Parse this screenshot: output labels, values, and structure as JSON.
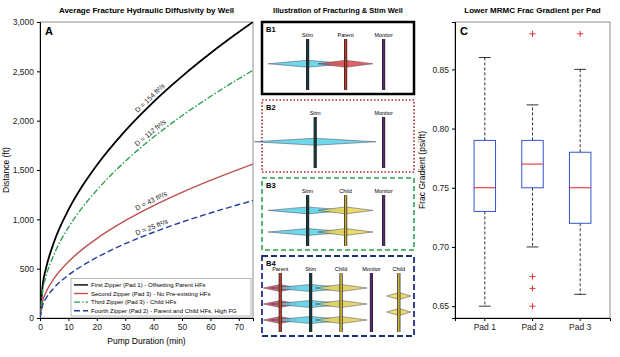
{
  "chart_data": [
    {
      "type": "line",
      "title": "Average Fracture Hydraulic Diffusivity by Well",
      "panel_label": "A",
      "x_label": "Pump Duration (min)",
      "y_label": "Distance (ft)",
      "x": [
        0,
        1,
        2,
        5,
        10,
        15,
        20,
        30,
        40,
        50,
        60,
        70,
        75
      ],
      "xlim": [
        0,
        75
      ],
      "xticks": [
        0,
        10,
        20,
        30,
        40,
        50,
        60,
        70
      ],
      "ylim": [
        0,
        3000
      ],
      "yticks": [
        0,
        500,
        {
          "value": 1000,
          "label": "1,000"
        },
        {
          "value": 1500,
          "label": "1,500"
        },
        {
          "value": 2000,
          "label": "2,000"
        },
        {
          "value": 2500,
          "label": "2,500"
        },
        {
          "value": 3000,
          "label": "3,000"
        }
      ],
      "legend": "lower right",
      "series": [
        {
          "name": "First Zipper (Pad 1) - Offsetting Parent HFs",
          "color": "#000000",
          "line_style": "solid",
          "label": "D = 154 ft²/s",
          "values": [
            0,
            346,
            490,
            775,
            1095,
            1342,
            1549,
            1897,
            2191,
            2449,
            2683,
            2898,
            3000
          ]
        },
        {
          "name": "Second Zipper (Pad 3) - No Pre-existing HFs",
          "color": "#c0504d",
          "line_style": "solid",
          "label": "D = 43 ft²/s",
          "values": [
            0,
            180,
            255,
            403,
            570,
            698,
            805,
            986,
            1139,
            1274,
            1395,
            1507,
            1560
          ]
        },
        {
          "name": "Third Zipper (Pad 3) - Child HFs",
          "color": "#2e9e4f",
          "line_style": "dashdot",
          "label": "D = 112 ft²/s",
          "values": [
            0,
            290,
            410,
            648,
            917,
            1123,
            1296,
            1588,
            1834,
            2050,
            2245,
            2425,
            2510
          ]
        },
        {
          "name": "Fourth Zipper (Pad 2) - Parent and Child HFs, High FG",
          "color": "#1f3fa0",
          "line_style": "dashed",
          "label": "D = 25 ft²/s",
          "values": [
            0,
            137,
            194,
            307,
            435,
            532,
            614,
            753,
            869,
            972,
            1064,
            1150,
            1190
          ]
        }
      ]
    },
    {
      "type": "box",
      "title": "Lower MRMC Frac Gradient per Pad",
      "panel_label": "C",
      "y_label": "Frac Gradient (psi/ft)",
      "categories": [
        "Pad 1",
        "Pad 2",
        "Pad 3"
      ],
      "ylim": [
        0.64,
        0.89
      ],
      "yticks": [
        0.65,
        {
          "value": 0.7,
          "label": "0.70"
        },
        0.75,
        {
          "value": 0.8,
          "label": "0.80"
        },
        0.85
      ],
      "color": "#3355cc",
      "marker": "plus",
      "low": [
        0.65,
        0.7,
        0.66
      ],
      "q1": [
        0.73,
        0.75,
        0.72
      ],
      "median": [
        0.75,
        0.77,
        0.75
      ],
      "q3": [
        0.79,
        0.79,
        0.78
      ],
      "high": [
        0.86,
        0.82,
        0.85
      ],
      "outliers": [
        [],
        [
          0.88,
          0.675,
          0.665,
          0.65
        ],
        [
          0.88
        ]
      ]
    }
  ],
  "diagram": {
    "title": "Illustration of Fracturing & Stim Well",
    "panels": [
      {
        "label": "B1",
        "wells": [
          "Stim",
          "Parent",
          "Monitor"
        ]
      },
      {
        "label": "B2",
        "wells": [
          "Stim",
          "Monitor"
        ]
      },
      {
        "label": "B3",
        "wells": [
          "Stim",
          "Child",
          "Monitor"
        ]
      },
      {
        "label": "B4",
        "wells": [
          "Parent",
          "Stim",
          "Child",
          "Monitor",
          "Child"
        ]
      }
    ]
  }
}
